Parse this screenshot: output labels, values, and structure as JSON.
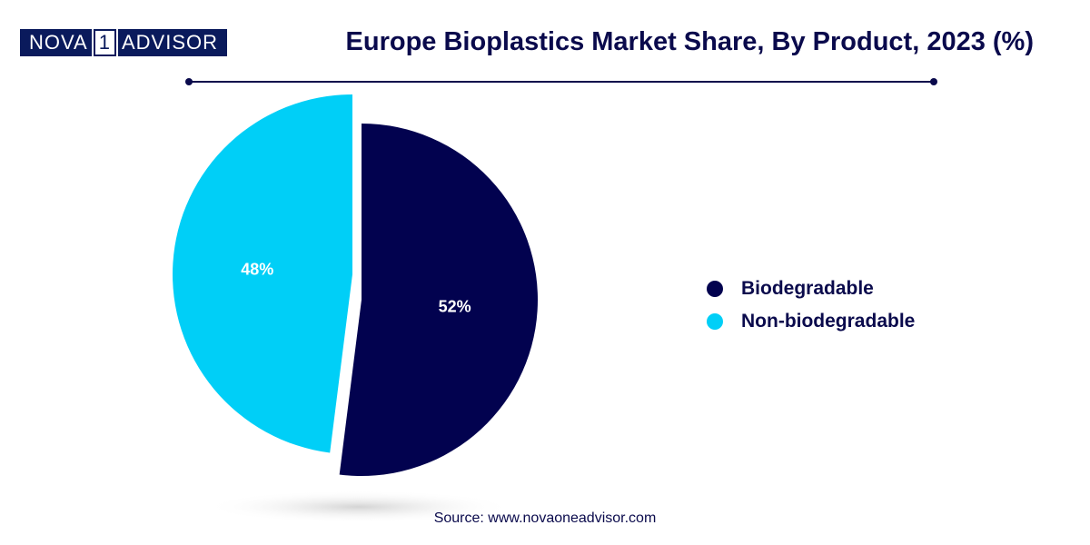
{
  "logo": {
    "part1": "NOVA",
    "part2": "1",
    "part3": "ADVISOR"
  },
  "title": "Europe Bioplastics Market Share, By Product, 2023 (%)",
  "colors": {
    "biodegradable": "#02024f",
    "non_biodegradable": "#00cff7",
    "text": "#0a0a4c"
  },
  "chart_data": {
    "type": "pie",
    "title": "Europe Bioplastics Market Share, By Product, 2023 (%)",
    "legend_position": "right",
    "slices": [
      {
        "label": "Biodegradable",
        "value": 52,
        "display": "52%",
        "color": "#02024f"
      },
      {
        "label": "Non-biodegradable",
        "value": 48,
        "display": "48%",
        "color": "#00cff7"
      }
    ]
  },
  "legend": [
    {
      "label": "Biodegradable",
      "color": "#02024f"
    },
    {
      "label": "Non-biodegradable",
      "color": "#00cff7"
    }
  ],
  "source": "Source: www.novaoneadvisor.com"
}
